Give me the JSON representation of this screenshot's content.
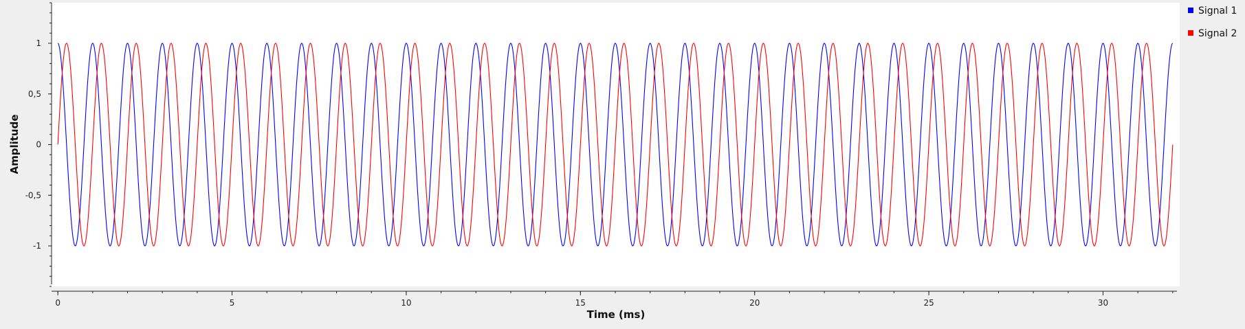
{
  "chart_data": {
    "type": "line",
    "title": "",
    "xlabel": "Time (ms)",
    "ylabel": "Amplitude",
    "xlim": [
      -0.2,
      32.2
    ],
    "ylim": [
      -1.4,
      1.4
    ],
    "x_ticks": [
      0,
      5,
      10,
      15,
      20,
      25,
      30
    ],
    "x_tick_labels": [
      "0",
      "5",
      "10",
      "15",
      "20",
      "25",
      "30"
    ],
    "y_ticks": [
      1,
      0.5,
      0,
      -0.5,
      -1
    ],
    "y_tick_labels": [
      "1",
      "0,5",
      "0",
      "-0,5",
      "-1"
    ],
    "grid": false,
    "legend_position": "top-right, outside plot area",
    "x_range": [
      0,
      32
    ],
    "series": [
      {
        "name": "Signal 1",
        "color": "#0000ff",
        "function": "cos",
        "frequency_khz": 1,
        "amplitude": 1,
        "phase_deg": 0
      },
      {
        "name": "Signal 2",
        "color": "#ff0000",
        "function": "sin",
        "frequency_khz": 1,
        "amplitude": 1,
        "phase_deg": 0
      }
    ]
  }
}
